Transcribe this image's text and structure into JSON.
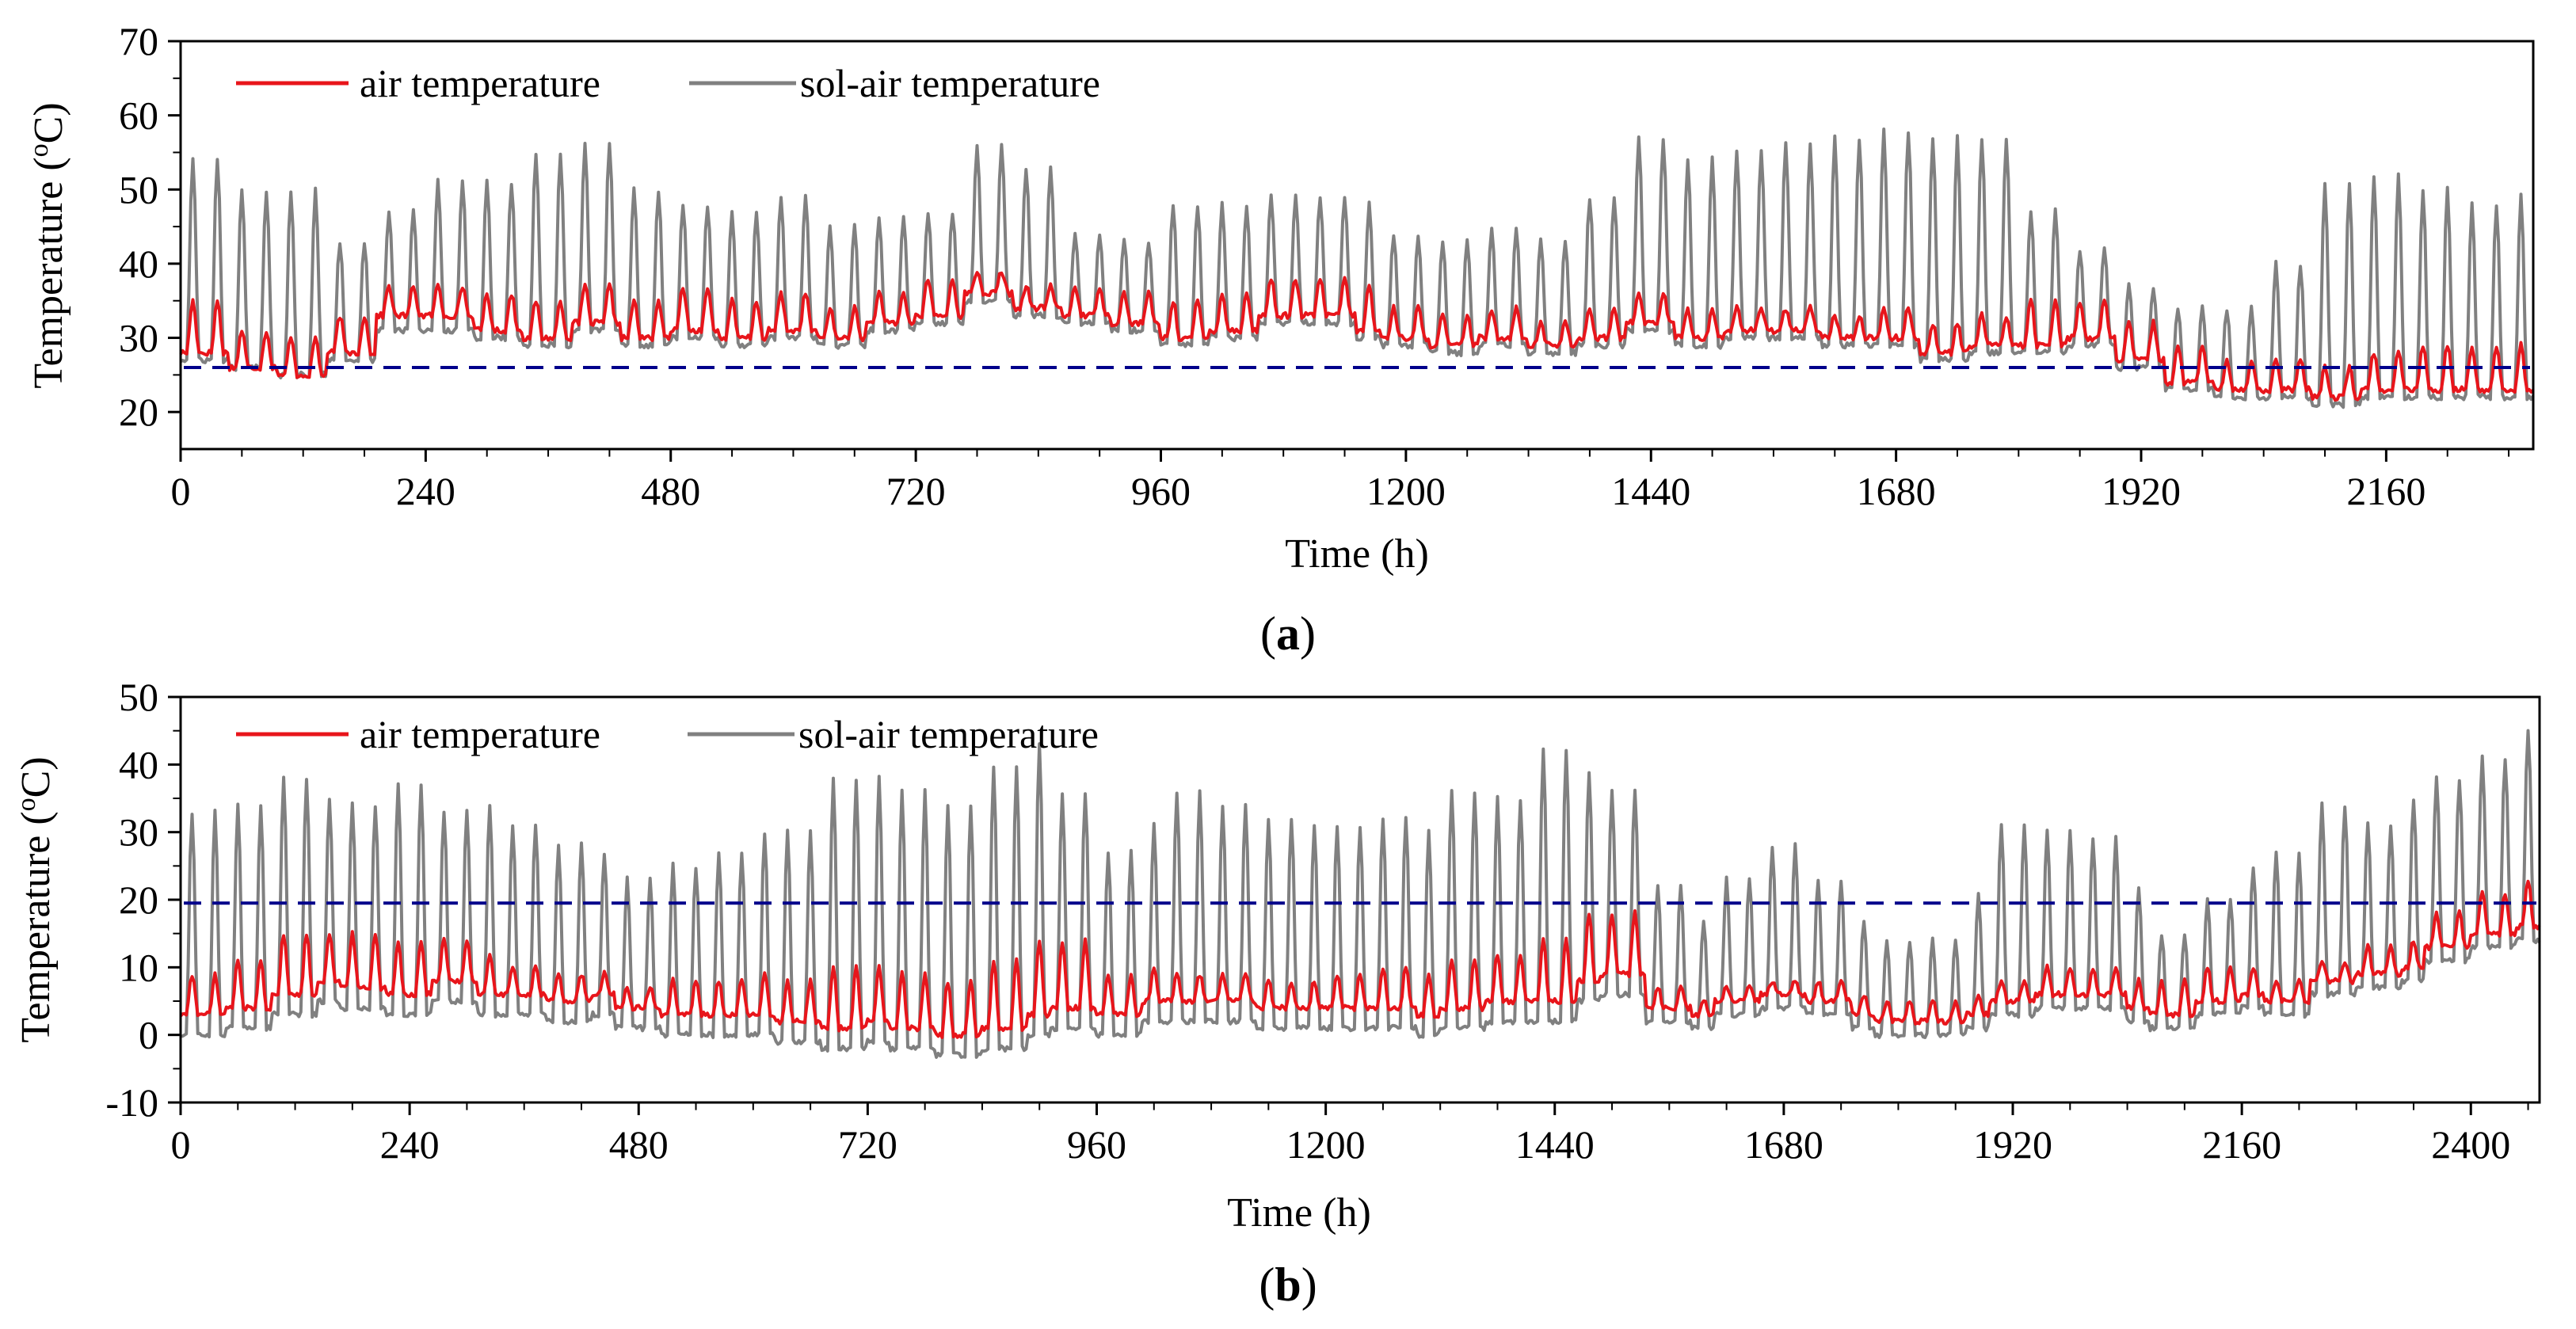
{
  "chart_data": [
    {
      "type": "line",
      "panel_label": "a",
      "xlabel": "Time (h)",
      "ylabel_prefix": "Temperature (",
      "ylabel_sup": "o",
      "ylabel_suffix": "C)",
      "xlim": [
        0,
        2304
      ],
      "ylim": [
        15,
        70
      ],
      "xticks": [
        0,
        240,
        480,
        720,
        960,
        1200,
        1440,
        1680,
        1920,
        2160
      ],
      "yticks": [
        20,
        30,
        40,
        50,
        60,
        70
      ],
      "legend_position": "top-left",
      "reference_line": {
        "value": 26,
        "color": "#00008b",
        "style": "dashed"
      },
      "series": [
        {
          "name": "air temperature",
          "color": "#e8151b",
          "generator": "daily_cycle",
          "base": [
            28,
            26,
            25,
            28,
            33,
            33,
            31,
            30,
            32,
            30,
            31,
            30,
            31,
            30,
            32,
            33,
            36,
            34,
            33,
            32,
            30,
            31,
            33,
            33,
            31,
            30,
            29,
            30,
            29,
            30,
            32,
            30,
            31,
            31,
            30,
            30,
            28,
            29,
            29,
            30,
            27,
            24,
            23,
            23,
            22,
            23,
            23,
            23,
            23
          ],
          "amp": [
            7,
            5,
            5,
            5,
            4,
            4,
            5,
            5,
            5,
            5,
            6,
            5,
            5,
            4,
            4,
            5,
            3,
            3,
            4,
            4,
            5,
            5,
            5,
            5,
            6,
            4,
            4,
            4,
            3,
            4,
            4,
            4,
            3,
            3,
            3,
            4,
            4,
            4,
            6,
            5,
            5,
            5,
            4,
            4,
            4,
            5,
            6,
            6,
            6
          ]
        },
        {
          "name": "sol-air temperature",
          "color": "#808080",
          "generator": "daily_cycle",
          "base": [
            27,
            26,
            25,
            27,
            31,
            31,
            30,
            29,
            31,
            29,
            30,
            29,
            30,
            29,
            31,
            32,
            35,
            33,
            32,
            31,
            29,
            30,
            32,
            32,
            30,
            29,
            28,
            29,
            28,
            29,
            31,
            29,
            30,
            30,
            29,
            29,
            27,
            28,
            28,
            29,
            26,
            23,
            22,
            22,
            21,
            22,
            22,
            22,
            22
          ],
          "amp": [
            27,
            24,
            25,
            16,
            16,
            20,
            21,
            26,
            25,
            21,
            18,
            18,
            19,
            16,
            15,
            15,
            21,
            20,
            12,
            12,
            19,
            18,
            17,
            17,
            18,
            15,
            15,
            16,
            15,
            20,
            26,
            25,
            25,
            26,
            28,
            29,
            30,
            29,
            19,
            13,
            11,
            11,
            12,
            18,
            30,
            30,
            28,
            26,
            27
          ]
        }
      ]
    },
    {
      "type": "line",
      "panel_label": "b",
      "xlabel": "Time (h)",
      "ylabel_prefix": "Temperature (",
      "ylabel_sup": "o",
      "ylabel_suffix": "C)",
      "xlim": [
        0,
        2472
      ],
      "ylim": [
        -10,
        50
      ],
      "xticks": [
        0,
        240,
        480,
        720,
        960,
        1200,
        1440,
        1680,
        1920,
        2160,
        2400
      ],
      "yticks": [
        -10,
        0,
        10,
        20,
        30,
        40,
        50
      ],
      "legend_position": "top-left",
      "reference_line": {
        "value": 19.5,
        "color": "#00008b",
        "style": "dashed"
      },
      "series": [
        {
          "name": "air temperature",
          "color": "#e8151b",
          "generator": "daily_cycle",
          "base": [
            3,
            4,
            6,
            8,
            7,
            6,
            8,
            6,
            6,
            5,
            6,
            4,
            3,
            3,
            3,
            2,
            1,
            2,
            1,
            0,
            1,
            3,
            4,
            3,
            5,
            5,
            5,
            4,
            4,
            4,
            4,
            3,
            4,
            5,
            5,
            8,
            9,
            4,
            3,
            5,
            6,
            5,
            3,
            2,
            2,
            3,
            5,
            6,
            6,
            4,
            3,
            5,
            6,
            5,
            8,
            9,
            10,
            13,
            15,
            16
          ],
          "amp": [
            6,
            7,
            9,
            7,
            8,
            8,
            6,
            6,
            4,
            4,
            3,
            3,
            5,
            5,
            6,
            6,
            9,
            8,
            8,
            8,
            10,
            11,
            10,
            6,
            5,
            4,
            4,
            4,
            4,
            5,
            6,
            6,
            7,
            7,
            9,
            10,
            9,
            3,
            2,
            2,
            2,
            3,
            3,
            3,
            3,
            3,
            3,
            4,
            4,
            4,
            5,
            5,
            4,
            3,
            3,
            4,
            4,
            5,
            6,
            7
          ]
        },
        {
          "name": "sol-air temperature",
          "color": "#808080",
          "generator": "daily_cycle",
          "base": [
            0,
            1,
            3,
            5,
            4,
            3,
            5,
            3,
            3,
            2,
            3,
            1,
            0,
            0,
            0,
            -1,
            -2,
            -1,
            -2,
            -3,
            -2,
            0,
            1,
            0,
            2,
            2,
            2,
            1,
            1,
            1,
            1,
            0,
            1,
            2,
            2,
            5,
            6,
            2,
            1,
            3,
            4,
            3,
            1,
            0,
            0,
            1,
            3,
            4,
            4,
            2,
            1,
            3,
            4,
            3,
            6,
            7,
            8,
            11,
            13,
            14
          ],
          "amp": [
            33,
            33,
            35,
            30,
            30,
            34,
            28,
            31,
            28,
            26,
            24,
            22,
            25,
            27,
            30,
            31,
            40,
            39,
            38,
            37,
            42,
            43,
            35,
            27,
            29,
            34,
            32,
            31,
            30,
            30,
            31,
            30,
            35,
            33,
            40,
            34,
            30,
            20,
            16,
            20,
            24,
            20,
            16,
            14,
            14,
            20,
            28,
            26,
            25,
            20,
            14,
            17,
            21,
            24,
            28,
            24,
            27,
            27,
            28,
            31
          ]
        }
      ]
    }
  ]
}
